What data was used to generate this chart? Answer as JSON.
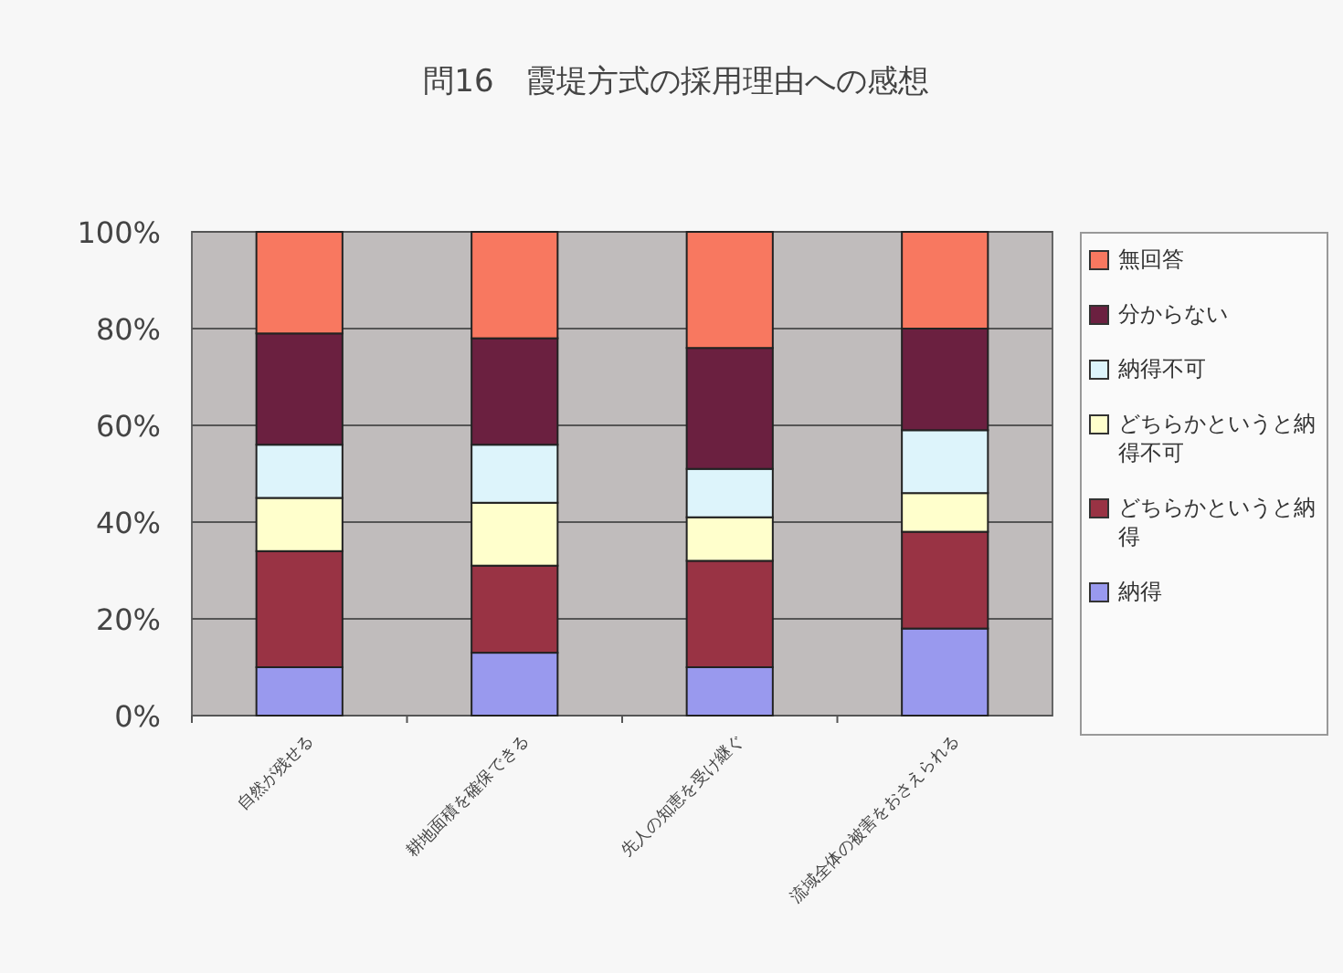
{
  "chart_data": {
    "type": "bar",
    "stacked": true,
    "title": "問16　霞堤方式の採用理由への感想",
    "categories": [
      "自然が残せる",
      "耕地面積を確保できる",
      "先人の知恵を受け継ぐ",
      "流域全体の被害をおさえられる"
    ],
    "series": [
      {
        "name": "納得",
        "color": "#9999ee",
        "values": [
          10,
          13,
          10,
          18
        ]
      },
      {
        "name": "どちらかというと納得",
        "color": "#993344",
        "values": [
          24,
          18,
          22,
          20
        ]
      },
      {
        "name": "どちらかというと納得不可",
        "color": "#ffffcc",
        "values": [
          11,
          13,
          9,
          8
        ]
      },
      {
        "name": "納得不可",
        "color": "#ddf4fb",
        "values": [
          11,
          12,
          10,
          13
        ]
      },
      {
        "name": "分からない",
        "color": "#6b2040",
        "values": [
          23,
          22,
          25,
          21
        ]
      },
      {
        "name": "無回答",
        "color": "#f87860",
        "values": [
          21,
          22,
          24,
          20
        ]
      }
    ],
    "ylim": [
      0,
      100
    ],
    "yticks": [
      {
        "value": 0,
        "label": "0%"
      },
      {
        "value": 20,
        "label": "20%"
      },
      {
        "value": 40,
        "label": "40%"
      },
      {
        "value": 60,
        "label": "60%"
      },
      {
        "value": 80,
        "label": "80%"
      },
      {
        "value": 100,
        "label": "100%"
      }
    ],
    "grid": "y",
    "legend": "right"
  }
}
